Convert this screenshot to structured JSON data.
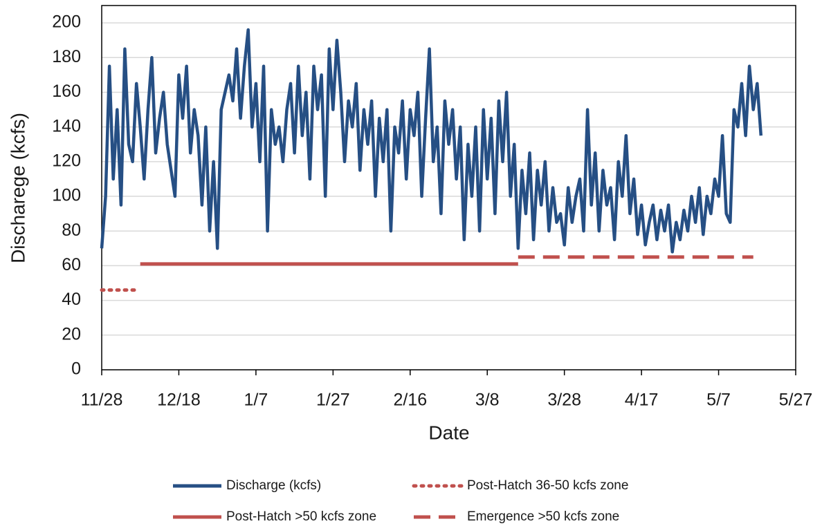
{
  "chart_data": {
    "type": "line",
    "x_label": "Date",
    "y_label": "Discharege (kcfs)",
    "xlim": [
      "11/28",
      "5/27"
    ],
    "xticks": [
      "11/28",
      "12/18",
      "1/7",
      "1/27",
      "2/16",
      "3/8",
      "3/28",
      "4/17",
      "5/7",
      "5/27"
    ],
    "ylim": [
      0,
      210
    ],
    "yticks": [
      0,
      20,
      40,
      60,
      80,
      100,
      120,
      140,
      160,
      180,
      200
    ],
    "grid": true,
    "legend": "bottom",
    "series": [
      {
        "name": "Discharge (kcfs)",
        "color": "#264f84",
        "style": "solid",
        "x": [
          "11/28",
          "11/29",
          "11/30",
          "12/1",
          "12/2",
          "12/3",
          "12/4",
          "12/5",
          "12/6",
          "12/7",
          "12/8",
          "12/9",
          "12/10",
          "12/11",
          "12/12",
          "12/13",
          "12/14",
          "12/15",
          "12/16",
          "12/17",
          "12/18",
          "12/19",
          "12/20",
          "12/21",
          "12/22",
          "12/23",
          "12/24",
          "12/25",
          "12/26",
          "12/27",
          "12/28",
          "12/29",
          "12/30",
          "12/31",
          "1/1",
          "1/2",
          "1/3",
          "1/4",
          "1/5",
          "1/6",
          "1/7",
          "1/8",
          "1/9",
          "1/10",
          "1/11",
          "1/12",
          "1/13",
          "1/14",
          "1/15",
          "1/16",
          "1/17",
          "1/18",
          "1/19",
          "1/20",
          "1/21",
          "1/22",
          "1/23",
          "1/24",
          "1/25",
          "1/26",
          "1/27",
          "1/28",
          "1/29",
          "1/30",
          "1/31",
          "2/1",
          "2/2",
          "2/3",
          "2/4",
          "2/5",
          "2/6",
          "2/7",
          "2/8",
          "2/9",
          "2/10",
          "2/11",
          "2/12",
          "2/13",
          "2/14",
          "2/15",
          "2/16",
          "2/17",
          "2/18",
          "2/19",
          "2/20",
          "2/21",
          "2/22",
          "2/23",
          "2/24",
          "2/25",
          "2/26",
          "2/27",
          "2/28",
          "3/1",
          "3/2",
          "3/3",
          "3/4",
          "3/5",
          "3/6",
          "3/7",
          "3/8",
          "3/9",
          "3/10",
          "3/11",
          "3/12",
          "3/13",
          "3/14",
          "3/15",
          "3/16",
          "3/17",
          "3/18",
          "3/19",
          "3/20",
          "3/21",
          "3/22",
          "3/23",
          "3/24",
          "3/25",
          "3/26",
          "3/27",
          "3/28",
          "3/29",
          "3/30",
          "3/31",
          "4/1",
          "4/2",
          "4/3",
          "4/4",
          "4/5",
          "4/6",
          "4/7",
          "4/8",
          "4/9",
          "4/10",
          "4/11",
          "4/12",
          "4/13",
          "4/14",
          "4/15",
          "4/16",
          "4/17",
          "4/18",
          "4/19",
          "4/20",
          "4/21",
          "4/22",
          "4/23",
          "4/24",
          "4/25",
          "4/26",
          "4/27",
          "4/28",
          "4/29",
          "4/30",
          "5/1",
          "5/2",
          "5/3",
          "5/4",
          "5/5",
          "5/6",
          "5/7",
          "5/8",
          "5/9",
          "5/10",
          "5/11",
          "5/12",
          "5/13",
          "5/14",
          "5/15",
          "5/16",
          "5/17",
          "5/18"
        ],
        "values": [
          70,
          100,
          175,
          110,
          150,
          95,
          185,
          130,
          120,
          165,
          140,
          110,
          150,
          180,
          125,
          145,
          160,
          130,
          115,
          100,
          170,
          145,
          175,
          125,
          150,
          135,
          95,
          140,
          80,
          120,
          70,
          150,
          160,
          170,
          155,
          185,
          145,
          175,
          196,
          140,
          165,
          120,
          175,
          80,
          150,
          130,
          140,
          120,
          150,
          165,
          125,
          175,
          135,
          160,
          110,
          175,
          150,
          170,
          100,
          185,
          150,
          190,
          160,
          120,
          155,
          140,
          165,
          115,
          150,
          130,
          155,
          100,
          145,
          120,
          150,
          80,
          140,
          125,
          155,
          110,
          150,
          135,
          160,
          100,
          145,
          185,
          120,
          140,
          90,
          155,
          130,
          150,
          110,
          140,
          75,
          130,
          100,
          140,
          80,
          150,
          110,
          145,
          90,
          155,
          120,
          160,
          100,
          130,
          70,
          115,
          90,
          125,
          75,
          115,
          95,
          120,
          80,
          105,
          85,
          90,
          72,
          105,
          85,
          100,
          110,
          80,
          150,
          95,
          125,
          80,
          115,
          95,
          105,
          75,
          120,
          100,
          135,
          90,
          110,
          78,
          95,
          72,
          85,
          95,
          75,
          92,
          80,
          95,
          68,
          85,
          75,
          92,
          80,
          100,
          85,
          105,
          78,
          100,
          90,
          110,
          100,
          135,
          90,
          85,
          150,
          140,
          165,
          135,
          175,
          150,
          165,
          135
        ]
      },
      {
        "name": "Post-Hatch 36-50 kcfs zone",
        "color": "#c0504d",
        "style": "dotted",
        "x": [
          "11/28",
          "12/7"
        ],
        "values": [
          46,
          46
        ]
      },
      {
        "name": "Post-Hatch >50 kcfs zone",
        "color": "#c0504d",
        "style": "solid",
        "x": [
          "12/8",
          "3/16"
        ],
        "values": [
          61,
          61
        ]
      },
      {
        "name": "Emergence >50 kcfs zone",
        "color": "#c0504d",
        "style": "dashed",
        "x": [
          "3/16",
          "5/16"
        ],
        "values": [
          65,
          65
        ]
      }
    ]
  }
}
